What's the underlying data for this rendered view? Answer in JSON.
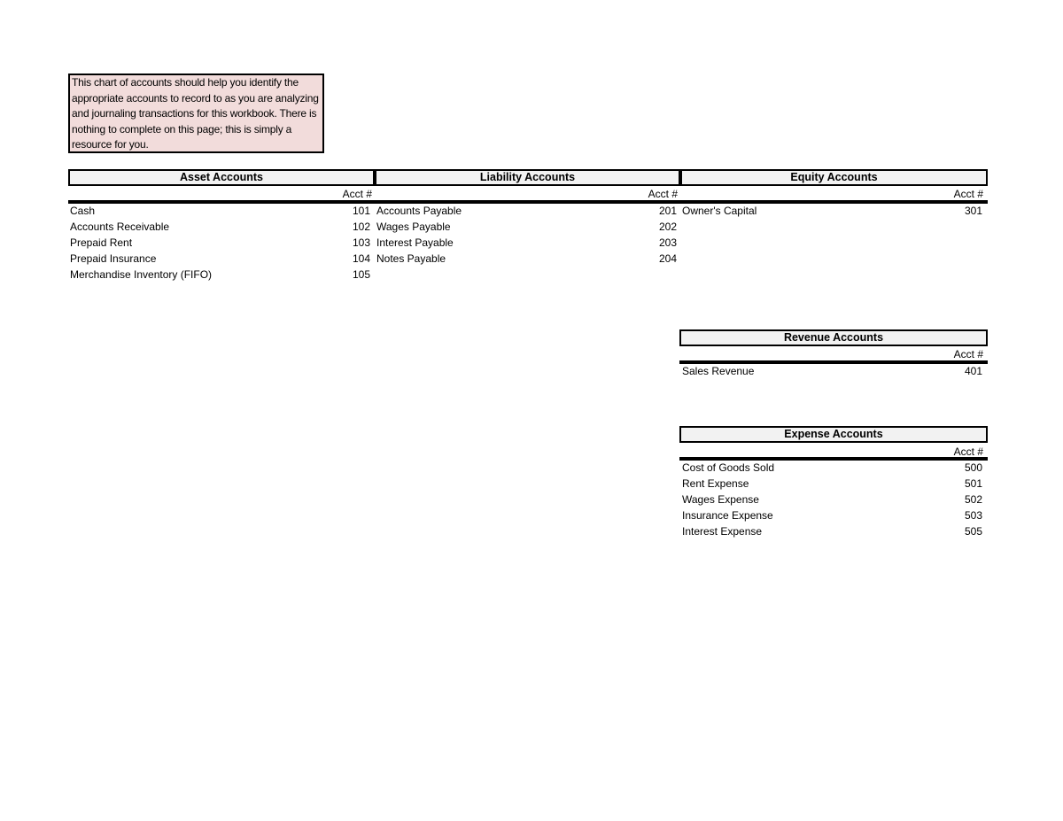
{
  "note": "This chart of accounts should help you identify the appropriate accounts to record to as you are analyzing and journaling transactions for this workbook. There is nothing to complete on this page; this is simply a resource for you.",
  "acct_label": "Acct #",
  "colors": {
    "note_bg": "#f2dcdb",
    "header_bg": "#f2f2f2"
  },
  "assets": {
    "title": "Asset Accounts",
    "rows": [
      {
        "name": "Cash",
        "num": "101"
      },
      {
        "name": "Accounts Receivable",
        "num": "102"
      },
      {
        "name": "Prepaid Rent",
        "num": "103"
      },
      {
        "name": "Prepaid Insurance",
        "num": "104"
      },
      {
        "name": "Merchandise Inventory (FIFO)",
        "num": "105"
      }
    ]
  },
  "liabilities": {
    "title": "Liability Accounts",
    "rows": [
      {
        "name": "Accounts Payable",
        "num": "201"
      },
      {
        "name": "Wages Payable",
        "num": "202"
      },
      {
        "name": "Interest Payable",
        "num": "203"
      },
      {
        "name": "Notes Payable",
        "num": "204"
      }
    ]
  },
  "equity": {
    "title": "Equity Accounts",
    "rows": [
      {
        "name": "Owner's Capital",
        "num": "301"
      }
    ]
  },
  "revenue": {
    "title": "Revenue Accounts",
    "rows": [
      {
        "name": "Sales Revenue",
        "num": "401"
      }
    ]
  },
  "expense": {
    "title": "Expense Accounts",
    "rows": [
      {
        "name": "Cost of Goods Sold",
        "num": "500"
      },
      {
        "name": "Rent Expense",
        "num": "501"
      },
      {
        "name": "Wages Expense",
        "num": "502"
      },
      {
        "name": "Insurance Expense",
        "num": "503"
      },
      {
        "name": "Interest Expense",
        "num": "505"
      }
    ]
  }
}
